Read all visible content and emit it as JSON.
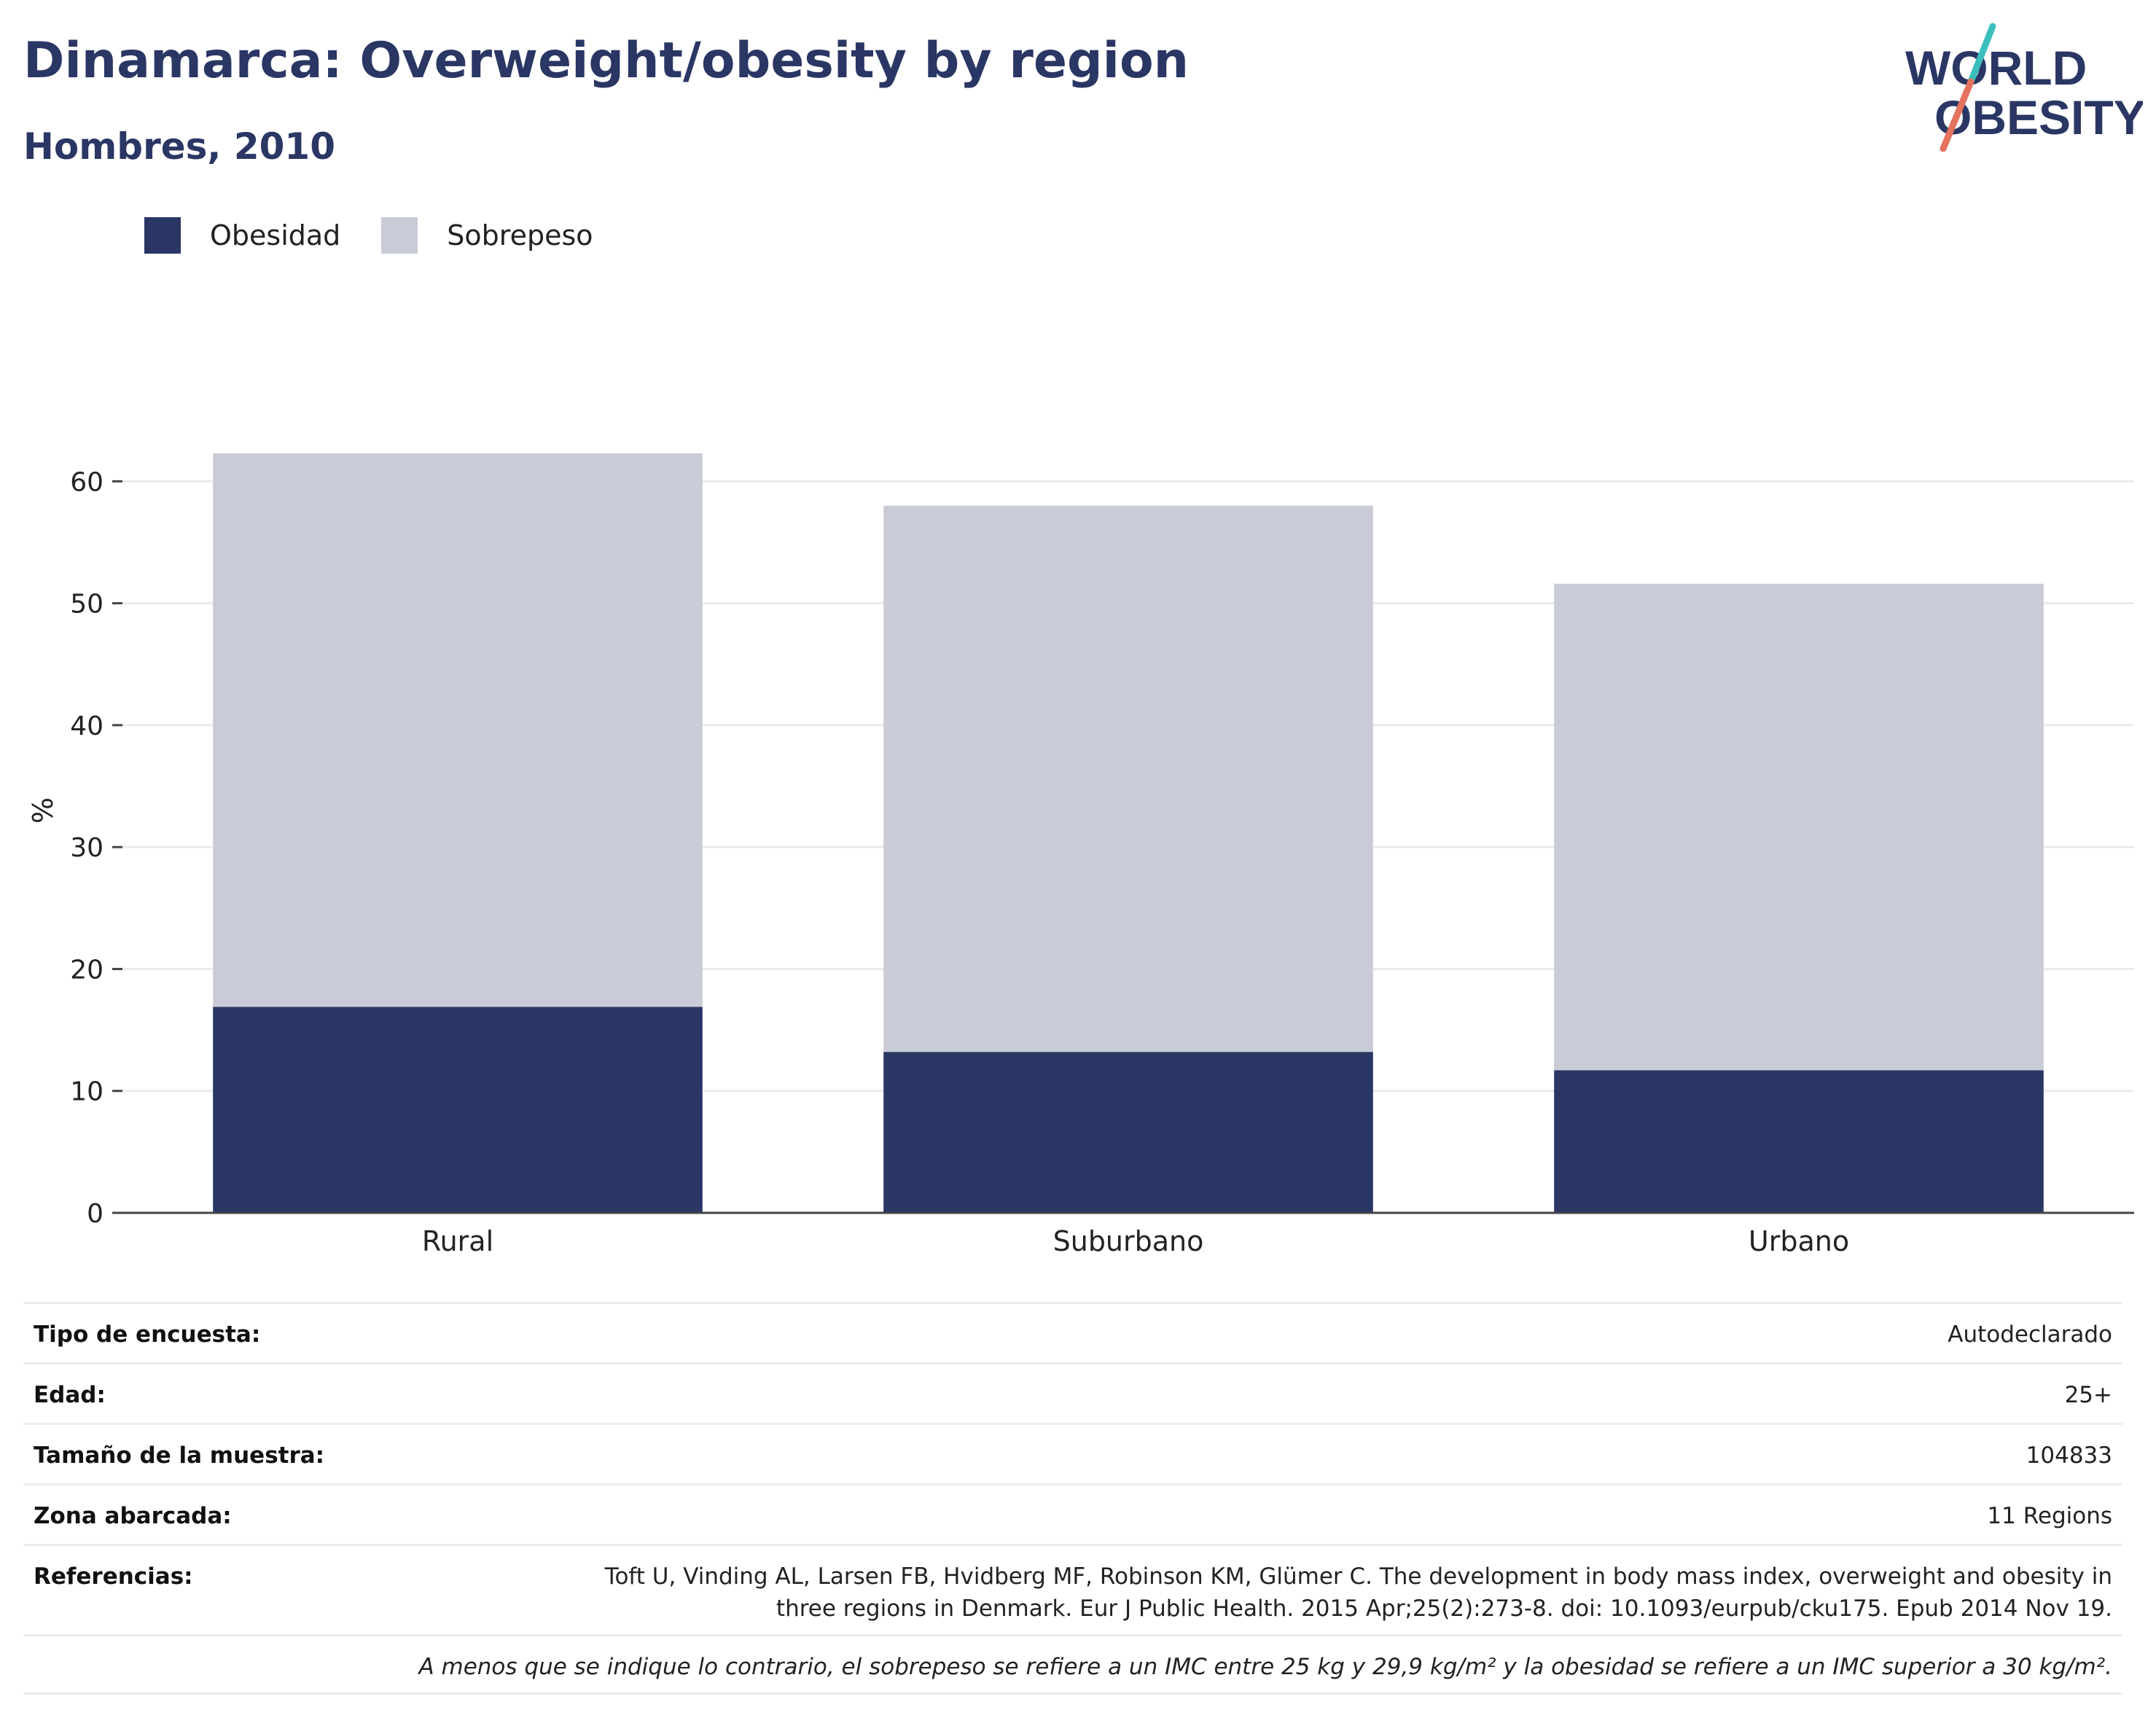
{
  "title": "Dinamarca: Overweight/obesity by region",
  "subtitle": "Hombres, 2010",
  "logo": {
    "line1": "WORLD",
    "line2": "OBESITY"
  },
  "colors": {
    "obesity": "#2a3664",
    "overweight": "#c9cbd6",
    "title": "#2a3664",
    "grid": "#ebebeb",
    "axis": "#444444",
    "logo_teal": "#3bbfbd",
    "logo_coral": "#e4725e"
  },
  "legend": [
    {
      "label": "Obesidad",
      "color": "#2a3664"
    },
    {
      "label": "Sobrepeso",
      "color": "#c9cbd6"
    }
  ],
  "chart_data": {
    "type": "bar",
    "stacked": true,
    "categories": [
      "Rural",
      "Suburbano",
      "Urbano"
    ],
    "series": [
      {
        "name": "Obesidad",
        "values": [
          16.9,
          13.2,
          11.7
        ]
      },
      {
        "name": "Sobrepeso",
        "values": [
          45.4,
          44.8,
          39.9
        ]
      }
    ],
    "ylabel": "%",
    "xlabel": "",
    "ylim": [
      0,
      66
    ],
    "yticks": [
      0,
      10,
      20,
      30,
      40,
      50,
      60
    ],
    "grid": true,
    "legend_position": "top-left"
  },
  "meta": {
    "survey_label": "Tipo de encuesta:",
    "survey_value": "Autodeclarado",
    "age_label": "Edad:",
    "age_value": "25+",
    "sample_label": "Tamaño de la muestra:",
    "sample_value": "104833",
    "area_label": "Zona abarcada:",
    "area_value": "11 Regions",
    "ref_label": "Referencias:",
    "ref_line1": "Toft U, Vinding AL, Larsen FB, Hvidberg MF, Robinson KM, Glümer C. The development in body mass index, overweight and obesity in",
    "ref_line2": "three regions in Denmark. Eur J Public Health. 2015 Apr;25(2):273-8. doi: 10.1093/eurpub/cku175. Epub 2014 Nov 19.",
    "note": "A menos que se indique lo contrario, el sobrepeso se refiere a un IMC entre 25 kg y 29,9 kg/m² y la obesidad se refiere a un IMC superior a 30 kg/m²."
  }
}
